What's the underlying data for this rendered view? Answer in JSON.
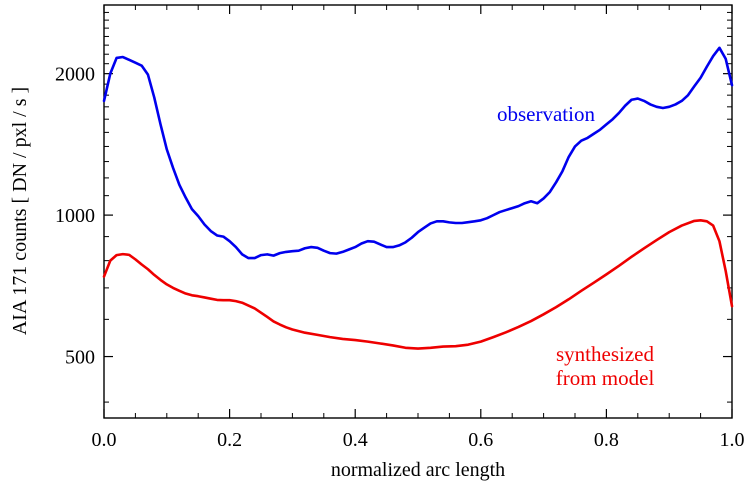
{
  "chart_data": {
    "type": "line",
    "title": "",
    "xlabel": "normalized arc length",
    "ylabel": "AIA 171 counts  [ DN / pxl / s ]",
    "xlim": [
      0.0,
      1.0
    ],
    "ylim": [
      370,
      2800
    ],
    "yscale": "log",
    "grid": false,
    "x_ticks": [
      0.0,
      0.2,
      0.4,
      0.6,
      0.8,
      1.0
    ],
    "x_tick_labels": [
      "0.0",
      "0.2",
      "0.4",
      "0.6",
      "0.8",
      "1.0"
    ],
    "y_ticks": [
      500,
      1000,
      2000
    ],
    "y_tick_labels": [
      "500",
      "1000",
      "2000"
    ],
    "series": [
      {
        "name": "observation",
        "color": "#0000ee",
        "label_lines": [
          "observation"
        ],
        "x": [
          0.0,
          0.01,
          0.02,
          0.03,
          0.04,
          0.05,
          0.06,
          0.07,
          0.08,
          0.09,
          0.1,
          0.11,
          0.12,
          0.13,
          0.14,
          0.15,
          0.16,
          0.17,
          0.18,
          0.19,
          0.2,
          0.21,
          0.22,
          0.23,
          0.24,
          0.25,
          0.26,
          0.27,
          0.28,
          0.29,
          0.3,
          0.31,
          0.32,
          0.33,
          0.34,
          0.35,
          0.36,
          0.37,
          0.38,
          0.39,
          0.4,
          0.41,
          0.42,
          0.43,
          0.44,
          0.45,
          0.46,
          0.47,
          0.48,
          0.49,
          0.5,
          0.51,
          0.52,
          0.53,
          0.54,
          0.55,
          0.56,
          0.57,
          0.58,
          0.59,
          0.6,
          0.61,
          0.62,
          0.63,
          0.64,
          0.65,
          0.66,
          0.67,
          0.68,
          0.69,
          0.7,
          0.71,
          0.72,
          0.73,
          0.74,
          0.75,
          0.76,
          0.77,
          0.78,
          0.79,
          0.8,
          0.81,
          0.82,
          0.83,
          0.84,
          0.85,
          0.86,
          0.87,
          0.88,
          0.89,
          0.9,
          0.91,
          0.92,
          0.93,
          0.94,
          0.95,
          0.96,
          0.97,
          0.98,
          0.99,
          1.0
        ],
        "values": [
          1750,
          2000,
          2160,
          2170,
          2140,
          2110,
          2080,
          1990,
          1780,
          1560,
          1380,
          1260,
          1160,
          1090,
          1030,
          995,
          955,
          925,
          905,
          900,
          880,
          855,
          825,
          810,
          810,
          822,
          825,
          820,
          830,
          835,
          838,
          840,
          850,
          855,
          852,
          840,
          830,
          828,
          835,
          845,
          855,
          870,
          880,
          878,
          866,
          855,
          855,
          862,
          875,
          895,
          920,
          940,
          960,
          970,
          970,
          965,
          962,
          962,
          966,
          970,
          975,
          985,
          1000,
          1015,
          1025,
          1035,
          1045,
          1060,
          1070,
          1060,
          1085,
          1120,
          1175,
          1240,
          1330,
          1400,
          1440,
          1460,
          1490,
          1520,
          1560,
          1600,
          1650,
          1710,
          1760,
          1770,
          1750,
          1720,
          1700,
          1690,
          1700,
          1720,
          1750,
          1800,
          1880,
          1960,
          2070,
          2180,
          2270,
          2150,
          1890
        ]
      },
      {
        "name": "synthesized from model",
        "color": "#ee0000",
        "label_lines": [
          "synthesized",
          "from model"
        ],
        "x": [
          0.0,
          0.01,
          0.02,
          0.03,
          0.04,
          0.05,
          0.06,
          0.07,
          0.08,
          0.09,
          0.1,
          0.11,
          0.12,
          0.13,
          0.14,
          0.15,
          0.16,
          0.17,
          0.18,
          0.19,
          0.2,
          0.21,
          0.22,
          0.23,
          0.24,
          0.25,
          0.26,
          0.27,
          0.28,
          0.29,
          0.3,
          0.32,
          0.34,
          0.36,
          0.38,
          0.4,
          0.42,
          0.44,
          0.46,
          0.48,
          0.5,
          0.52,
          0.54,
          0.56,
          0.58,
          0.6,
          0.62,
          0.64,
          0.66,
          0.68,
          0.7,
          0.72,
          0.74,
          0.76,
          0.78,
          0.8,
          0.82,
          0.84,
          0.86,
          0.88,
          0.9,
          0.92,
          0.94,
          0.95,
          0.96,
          0.97,
          0.98,
          0.99,
          1.0
        ],
        "values": [
          740,
          800,
          822,
          826,
          823,
          805,
          785,
          767,
          746,
          728,
          712,
          700,
          690,
          681,
          675,
          672,
          668,
          664,
          660,
          659,
          659,
          656,
          651,
          642,
          633,
          620,
          607,
          594,
          585,
          577,
          571,
          562,
          556,
          550,
          545,
          542,
          538,
          533,
          528,
          522,
          520,
          522,
          525,
          526,
          530,
          538,
          550,
          563,
          578,
          595,
          615,
          637,
          662,
          690,
          718,
          748,
          780,
          815,
          850,
          885,
          920,
          950,
          972,
          975,
          970,
          950,
          880,
          760,
          640
        ]
      }
    ]
  }
}
